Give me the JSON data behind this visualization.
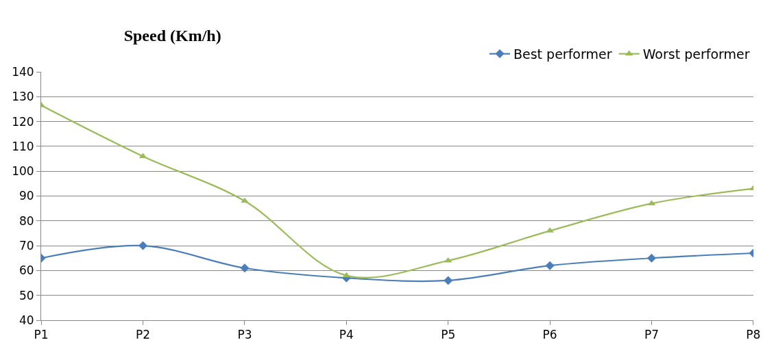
{
  "chart_data": {
    "type": "line",
    "title": "Speed (Km/h)",
    "categories": [
      "P1",
      "P2",
      "P3",
      "P4",
      "P5",
      "P6",
      "P7",
      "P8"
    ],
    "series": [
      {
        "name": "Best performer",
        "color": "#4a7ebb",
        "marker": "diamond",
        "values": [
          65,
          70,
          61,
          57,
          56,
          62,
          65,
          67
        ]
      },
      {
        "name": "Worst performer",
        "color": "#9bbb59",
        "marker": "triangle",
        "values": [
          126.5,
          106,
          88,
          58,
          64,
          76,
          87,
          93
        ]
      }
    ],
    "ylim": [
      40,
      140
    ],
    "yticks": [
      40,
      50,
      60,
      70,
      80,
      90,
      100,
      110,
      120,
      130,
      140
    ],
    "grid": "y",
    "legend": "top right",
    "line_style": "solid"
  }
}
